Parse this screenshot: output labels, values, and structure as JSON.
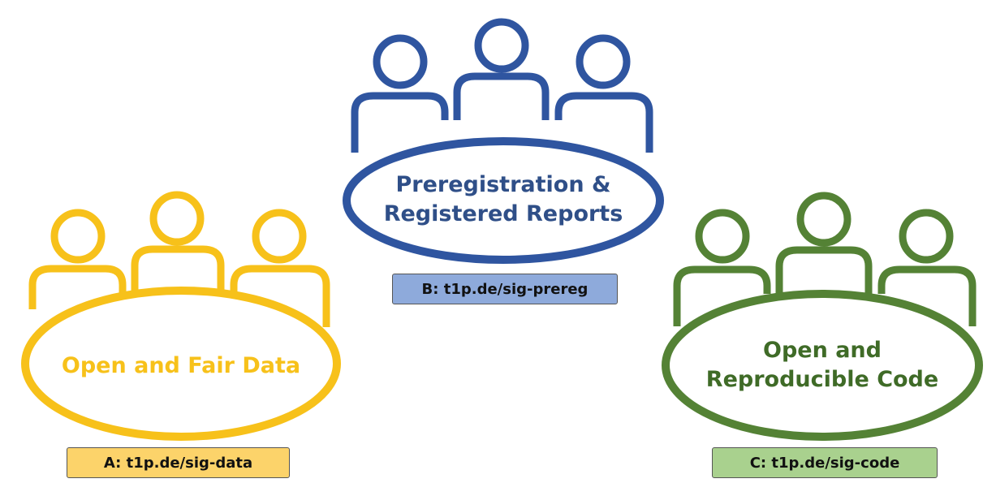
{
  "colors": {
    "data": "#f7c11a",
    "prereg": "#2f55a0",
    "code": "#548235",
    "badge_data_bg": "#fcd36a",
    "badge_prereg_bg": "#8eaadb",
    "badge_code_bg": "#a9d18e"
  },
  "icons": [
    "people-group-icon"
  ],
  "groups": [
    {
      "id": "data",
      "title_lines": [
        "Open and Fair Data"
      ],
      "link": "A: t1p.de/sig-data"
    },
    {
      "id": "prereg",
      "title_lines": [
        "Preregistration &",
        "Registered Reports"
      ],
      "link": "B: t1p.de/sig-prereg"
    },
    {
      "id": "code",
      "title_lines": [
        "Open and",
        "Reproducible Code"
      ],
      "link": "C: t1p.de/sig-code"
    }
  ]
}
